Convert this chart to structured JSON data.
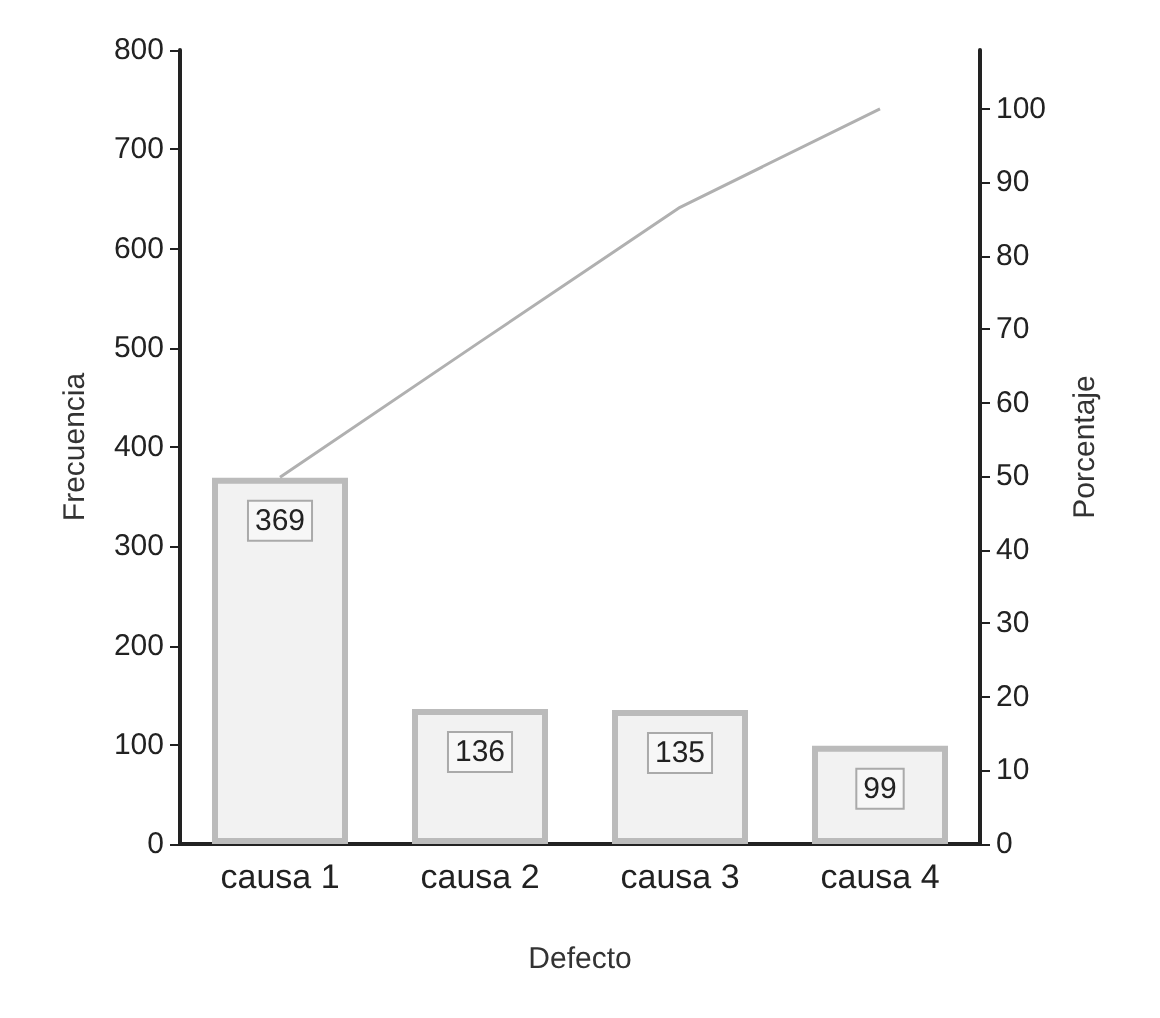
{
  "chart_data": {
    "type": "bar",
    "xlabel": "Defecto",
    "ylabel": "Frecuencia",
    "y2label": "Porcentaje",
    "categories": [
      "causa 1",
      "causa 2",
      "causa 3",
      "causa 4"
    ],
    "series": [
      {
        "color": "#f2f2f2",
        "values": [
          369,
          136,
          135,
          99
        ],
        "value_labels": [
          "369",
          "136",
          "135",
          "99"
        ]
      },
      {
        "type": "line",
        "axis": "y2",
        "color": "#b0b0b0",
        "values": [
          49.9,
          68.3,
          86.6,
          100
        ]
      }
    ],
    "marker": "none",
    "grid": false,
    "ylim": [
      0,
      800
    ],
    "yticks": [
      0,
      100,
      200,
      300,
      400,
      500,
      600,
      700,
      800
    ],
    "y2lim": [
      0,
      108
    ],
    "y2ticks": [
      0,
      10,
      20,
      30,
      40,
      50,
      60,
      70,
      80,
      90,
      100
    ]
  }
}
